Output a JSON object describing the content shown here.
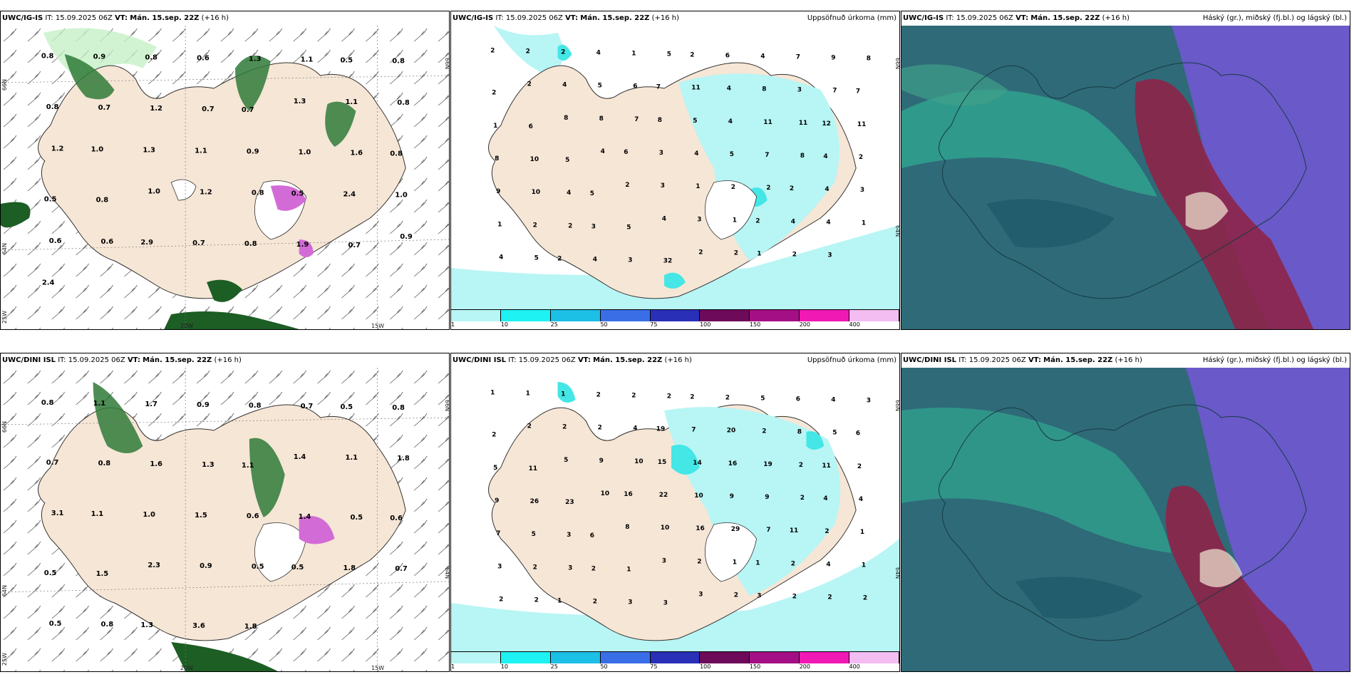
{
  "colors": {
    "land": "#f6e6d6",
    "cyan_light": "#b8f5f5",
    "cyan": "#44e6e6",
    "green_light": "#c6f0c6",
    "green_dark": "#1c5e24",
    "magenta": "#d36bd6",
    "cloud_bg": "#2f6a78",
    "cloud_teal": "#2fbf9a",
    "cloud_purple": "#6a59c8",
    "cloud_red": "#8e2448"
  },
  "panels": [
    {
      "model": "UWC/IG-IS",
      "it_label": "IT:",
      "it_value": "15.09.2025 06Z",
      "vt_label": "VT:",
      "vt_value": "Mán. 15.sep. 22Z",
      "lead": "(+16 h)",
      "right_title": "",
      "coords": {
        "lat_top_left": "66N",
        "lat_bottom_left": "64N",
        "lat_corner": "25W",
        "lon_a": "20W",
        "lon_b": "15W",
        "lat_top_right": "66N",
        "lat_bottom_right": ""
      },
      "values": [
        "0.8",
        "0.9",
        "0.8",
        "0.6",
        "1.3",
        "1.1",
        "0.5",
        "0.8",
        "0.8",
        "0.7",
        "1.2",
        "0.7",
        "0.7",
        "1.3",
        "1.1",
        "0.8",
        "1.2",
        "1.0",
        "1.3",
        "1.1",
        "0.9",
        "1.0",
        "1.6",
        "0.8",
        "0.5",
        "0.8",
        "1.0",
        "1.2",
        "0.8",
        "0.5",
        "2.4",
        "1.0",
        "0.6",
        "0.6",
        "2.9",
        "0.7",
        "0.8",
        "1.9",
        "0.7",
        "0.9",
        "2.4"
      ]
    },
    {
      "model": "UWC/IG-IS",
      "it_label": "IT:",
      "it_value": "15.09.2025 06Z",
      "vt_label": "VT:",
      "vt_value": "Mán. 15.sep. 22Z",
      "lead": "(+16 h)",
      "right_title": "Uppsöfnuð úrkoma (mm)",
      "coords": {
        "lat_top_left": "",
        "lat_bottom_left": "",
        "lat_corner": "",
        "lon_a": "",
        "lon_b": "",
        "lat_top_right": "66N",
        "lat_bottom_right": "64N"
      },
      "values": [
        "2",
        "2",
        "2",
        "4",
        "1",
        "5",
        "2",
        "6",
        "4",
        "7",
        "9",
        "8",
        "2",
        "2",
        "4",
        "5",
        "6",
        "7",
        "11",
        "4",
        "8",
        "3",
        "7",
        "7",
        "1",
        "6",
        "8",
        "8",
        "7",
        "8",
        "5",
        "4",
        "11",
        "11",
        "12",
        "11",
        "8",
        "10",
        "5",
        "4",
        "6",
        "3",
        "4",
        "5",
        "7",
        "8",
        "4",
        "2",
        "9",
        "10",
        "4",
        "5",
        "2",
        "3",
        "1",
        "2",
        "2",
        "2",
        "4",
        "3",
        "1",
        "2",
        "2",
        "3",
        "5",
        "4",
        "3",
        "1",
        "2",
        "4",
        "4",
        "1",
        "4",
        "5",
        "2",
        "4",
        "3",
        "32",
        "2",
        "2",
        "1",
        "2",
        "3"
      ],
      "legend": [
        "1",
        "10",
        "25",
        "50",
        "75",
        "100",
        "150",
        "200",
        "400"
      ]
    },
    {
      "model": "UWC/IG-IS",
      "it_label": "IT:",
      "it_value": "15.09.2025 06Z",
      "vt_label": "VT:",
      "vt_value": "Mán. 15.sep. 22Z",
      "lead": "(+16 h)",
      "right_title": "Háský (gr.), miðský (fj.bl.) og lágský (bl.)",
      "coords": {},
      "values": []
    },
    {
      "model": "UWC/DINI ISL",
      "it_label": "IT:",
      "it_value": "15.09.2025 06Z",
      "vt_label": "VT:",
      "vt_value": "Mán. 15.sep. 22Z",
      "lead": "(+16 h)",
      "right_title": "",
      "coords": {
        "lat_top_left": "66N",
        "lat_bottom_left": "64N",
        "lat_corner": "25W",
        "lon_a": "20W",
        "lon_b": "15W",
        "lat_top_right": "66N",
        "lat_bottom_right": "64N"
      },
      "values": [
        "0.8",
        "1.1",
        "1.7",
        "0.9",
        "0.8",
        "0.7",
        "0.5",
        "0.8",
        "0.7",
        "0.8",
        "1.6",
        "1.3",
        "1.1",
        "1.4",
        "1.1",
        "1.8",
        "3.1",
        "1.1",
        "1.0",
        "1.5",
        "0.6",
        "1.4",
        "0.5",
        "0.6",
        "0.5",
        "1.5",
        "2.3",
        "0.9",
        "0.5",
        "0.5",
        "1.8",
        "0.7",
        "0.5",
        "0.8",
        "1.3",
        "3.6",
        "1.8"
      ]
    },
    {
      "model": "UWC/DINI ISL",
      "it_label": "IT:",
      "it_value": "15.09.2025 06Z",
      "vt_label": "VT:",
      "vt_value": "Mán. 15.sep. 22Z",
      "lead": "(+16 h)",
      "right_title": "Uppsöfnuð úrkoma (mm)",
      "coords": {
        "lat_top_left": "",
        "lat_bottom_left": "",
        "lat_corner": "",
        "lon_a": "",
        "lon_b": "",
        "lat_top_right": "66N",
        "lat_bottom_right": "64N"
      },
      "values": [
        "1",
        "1",
        "1",
        "2",
        "2",
        "2",
        "2",
        "2",
        "5",
        "6",
        "4",
        "3",
        "2",
        "2",
        "2",
        "2",
        "4",
        "19",
        "7",
        "20",
        "2",
        "8",
        "5",
        "6",
        "5",
        "11",
        "5",
        "9",
        "10",
        "15",
        "14",
        "16",
        "19",
        "2",
        "11",
        "2",
        "9",
        "26",
        "23",
        "10",
        "16",
        "22",
        "10",
        "9",
        "9",
        "2",
        "4",
        "4",
        "7",
        "5",
        "3",
        "6",
        "8",
        "10",
        "16",
        "29",
        "7",
        "11",
        "2",
        "1",
        "3",
        "2",
        "3",
        "2",
        "1",
        "3",
        "2",
        "1",
        "1",
        "2",
        "4",
        "1",
        "2",
        "2",
        "1",
        "2",
        "3",
        "3",
        "3",
        "2",
        "3",
        "2",
        "2",
        "2"
      ],
      "legend": [
        "1",
        "10",
        "25",
        "50",
        "75",
        "100",
        "150",
        "200",
        "400"
      ]
    },
    {
      "model": "UWC/DINI ISL",
      "it_label": "IT:",
      "it_value": "15.09.2025 06Z",
      "vt_label": "VT:",
      "vt_value": "Mán. 15.sep. 22Z",
      "lead": "(+16 h)",
      "right_title": "Háský (gr.), miðský (fj.bl.) og lágský (bl.)",
      "coords": {},
      "values": []
    }
  ]
}
